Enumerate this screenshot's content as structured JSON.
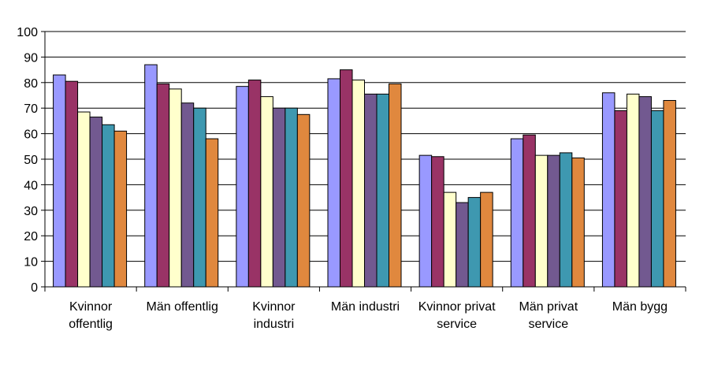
{
  "chart_data": {
    "type": "bar",
    "categories": [
      [
        "Kvinnor",
        "offentlig"
      ],
      [
        "Män offentlig"
      ],
      [
        "Kvinnor",
        "industri"
      ],
      [
        "Män industri"
      ],
      [
        "Kvinnor privat",
        "service"
      ],
      [
        "Män privat",
        "service"
      ],
      [
        "Män bygg"
      ]
    ],
    "series": [
      {
        "color": "#9999ff",
        "values": [
          83,
          87,
          78.5,
          81.5,
          51.5,
          58,
          76
        ]
      },
      {
        "color": "#993366",
        "values": [
          80.5,
          79.5,
          81,
          85,
          51,
          59.5,
          69
        ]
      },
      {
        "color": "#ffffcc",
        "values": [
          68.5,
          77.5,
          74.5,
          81,
          37,
          51.5,
          75.5
        ]
      },
      {
        "color": "#725990",
        "values": [
          66.5,
          72,
          70,
          75.5,
          33,
          51.5,
          74.5
        ]
      },
      {
        "color": "#3e98b0",
        "values": [
          63.5,
          70,
          70,
          75.5,
          35,
          52.5,
          69
        ]
      },
      {
        "color": "#e0883e",
        "values": [
          61,
          58,
          67.5,
          79.5,
          37,
          50.5,
          73
        ]
      }
    ],
    "yticks": [
      "0",
      "10",
      "20",
      "30",
      "40",
      "50",
      "60",
      "70",
      "80",
      "90",
      "100"
    ],
    "ylim": [
      0,
      100
    ],
    "grid": true,
    "legend": "none"
  }
}
